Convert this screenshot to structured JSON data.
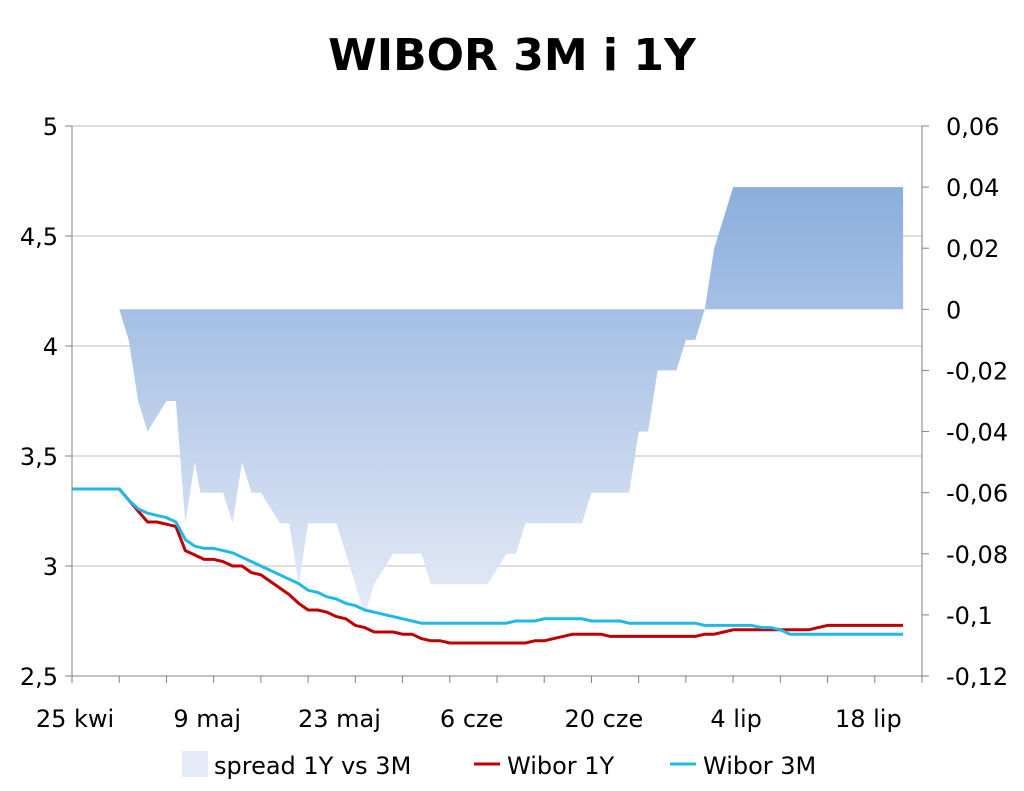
{
  "chart_data": {
    "type": "line",
    "title": "WIBOR 3M i 1Y",
    "x_ticks": [
      "25 kwi",
      "9 maj",
      "23 maj",
      "6 cze",
      "20 cze",
      "4 lip",
      "18 lip"
    ],
    "x_domain": [
      0,
      90
    ],
    "y_left": {
      "ticks": [
        "2,5",
        "3",
        "3,5",
        "4",
        "4,5",
        "5"
      ],
      "range": [
        2.5,
        5
      ]
    },
    "y_right": {
      "ticks": [
        "-0,12",
        "-0,1",
        "-0,08",
        "-0,06",
        "-0,04",
        "-0,02",
        "0",
        "0,02",
        "0,04",
        "0,06"
      ],
      "range": [
        -0.12,
        0.06
      ]
    },
    "grid": true,
    "legend_position": "bottom",
    "colors": {
      "spread_top": "#8aaedd",
      "spread_bottom": "#e4eaf6",
      "wibor_1y": "#c00000",
      "wibor_3m": "#1fb9e8"
    },
    "series": [
      {
        "name": "spread 1Y vs 3M",
        "axis": "right",
        "type": "area",
        "x": [
          5,
          6,
          7,
          8,
          9,
          10,
          11,
          12,
          13,
          13.6,
          14,
          14.5,
          15,
          16,
          17,
          18,
          19,
          19.6,
          20,
          21,
          22,
          23,
          24,
          25,
          26,
          27,
          28,
          29,
          30,
          31,
          32,
          33,
          34,
          35,
          36,
          37,
          38,
          39,
          40,
          41,
          42,
          43,
          44,
          45,
          46,
          47,
          48,
          49,
          50,
          51,
          52,
          53,
          54,
          55,
          56,
          57,
          58,
          59,
          60,
          61,
          62,
          63,
          64,
          65,
          66,
          67,
          68,
          69,
          70,
          71,
          72,
          73,
          74,
          75,
          76,
          77,
          78,
          79,
          80,
          81,
          82,
          83,
          84,
          85,
          86,
          87,
          88
        ],
        "values": [
          0,
          -0.01,
          -0.03,
          -0.04,
          -0.035,
          -0.03,
          -0.03,
          -0.07,
          -0.05,
          -0.06,
          -0.06,
          -0.06,
          -0.06,
          -0.06,
          -0.07,
          -0.05,
          -0.06,
          -0.06,
          -0.06,
          -0.065,
          -0.07,
          -0.07,
          -0.09,
          -0.07,
          -0.07,
          -0.07,
          -0.07,
          -0.08,
          -0.09,
          -0.1,
          -0.09,
          -0.085,
          -0.08,
          -0.08,
          -0.08,
          -0.08,
          -0.09,
          -0.09,
          -0.09,
          -0.09,
          -0.09,
          -0.09,
          -0.09,
          -0.085,
          -0.08,
          -0.08,
          -0.07,
          -0.07,
          -0.07,
          -0.07,
          -0.07,
          -0.07,
          -0.07,
          -0.06,
          -0.06,
          -0.06,
          -0.06,
          -0.06,
          -0.04,
          -0.04,
          -0.02,
          -0.02,
          -0.02,
          -0.01,
          -0.01,
          0,
          0.02,
          0.03,
          0.04,
          0.04,
          0.04,
          0.04,
          0.04,
          0.04,
          0.04,
          0.04,
          0.04,
          0.04,
          0.04,
          0.04,
          0.04,
          0.04,
          0.04,
          0.04,
          0.04,
          0.04,
          0.04
        ]
      },
      {
        "name": "Wibor 1Y",
        "axis": "left",
        "type": "line",
        "x": [
          0,
          1,
          2,
          3,
          4,
          5,
          6,
          7,
          8,
          9,
          10,
          11,
          12,
          13,
          14,
          15,
          16,
          17,
          18,
          19,
          20,
          21,
          22,
          23,
          24,
          25,
          26,
          27,
          28,
          29,
          30,
          31,
          32,
          33,
          34,
          35,
          36,
          37,
          38,
          39,
          40,
          41,
          42,
          43,
          44,
          45,
          46,
          47,
          48,
          49,
          50,
          51,
          52,
          53,
          54,
          55,
          56,
          57,
          58,
          59,
          60,
          61,
          62,
          63,
          64,
          65,
          66,
          67,
          68,
          69,
          70,
          71,
          72,
          73,
          74,
          75,
          76,
          77,
          78,
          79,
          80,
          81,
          82,
          83,
          84,
          85,
          86,
          87,
          88
        ],
        "values": [
          3.35,
          3.35,
          3.35,
          3.35,
          3.35,
          3.35,
          3.3,
          3.25,
          3.2,
          3.2,
          3.19,
          3.18,
          3.07,
          3.05,
          3.03,
          3.03,
          3.02,
          3.0,
          3.0,
          2.97,
          2.96,
          2.93,
          2.9,
          2.87,
          2.83,
          2.8,
          2.8,
          2.79,
          2.77,
          2.76,
          2.73,
          2.72,
          2.7,
          2.7,
          2.7,
          2.69,
          2.69,
          2.67,
          2.66,
          2.66,
          2.65,
          2.65,
          2.65,
          2.65,
          2.65,
          2.65,
          2.65,
          2.65,
          2.65,
          2.66,
          2.66,
          2.67,
          2.68,
          2.69,
          2.69,
          2.69,
          2.69,
          2.68,
          2.68,
          2.68,
          2.68,
          2.68,
          2.68,
          2.68,
          2.68,
          2.68,
          2.68,
          2.69,
          2.69,
          2.7,
          2.71,
          2.71,
          2.71,
          2.71,
          2.71,
          2.71,
          2.71,
          2.71,
          2.71,
          2.72,
          2.73,
          2.73,
          2.73,
          2.73,
          2.73,
          2.73,
          2.73,
          2.73,
          2.73
        ]
      },
      {
        "name": "Wibor 3M",
        "axis": "left",
        "type": "line",
        "x": [
          0,
          1,
          2,
          3,
          4,
          5,
          6,
          7,
          8,
          9,
          10,
          11,
          12,
          13,
          14,
          15,
          16,
          17,
          18,
          19,
          20,
          21,
          22,
          23,
          24,
          25,
          26,
          27,
          28,
          29,
          30,
          31,
          32,
          33,
          34,
          35,
          36,
          37,
          38,
          39,
          40,
          41,
          42,
          43,
          44,
          45,
          46,
          47,
          48,
          49,
          50,
          51,
          52,
          53,
          54,
          55,
          56,
          57,
          58,
          59,
          60,
          61,
          62,
          63,
          64,
          65,
          66,
          67,
          68,
          69,
          70,
          71,
          72,
          73,
          74,
          75,
          76,
          77,
          78,
          79,
          80,
          81,
          82,
          83,
          84,
          85,
          86,
          87,
          88
        ],
        "values": [
          3.35,
          3.35,
          3.35,
          3.35,
          3.35,
          3.35,
          3.3,
          3.26,
          3.24,
          3.23,
          3.22,
          3.2,
          3.12,
          3.09,
          3.08,
          3.08,
          3.07,
          3.06,
          3.04,
          3.02,
          3.0,
          2.98,
          2.96,
          2.94,
          2.92,
          2.89,
          2.88,
          2.86,
          2.85,
          2.83,
          2.82,
          2.8,
          2.79,
          2.78,
          2.77,
          2.76,
          2.75,
          2.74,
          2.74,
          2.74,
          2.74,
          2.74,
          2.74,
          2.74,
          2.74,
          2.74,
          2.74,
          2.75,
          2.75,
          2.75,
          2.76,
          2.76,
          2.76,
          2.76,
          2.76,
          2.75,
          2.75,
          2.75,
          2.75,
          2.74,
          2.74,
          2.74,
          2.74,
          2.74,
          2.74,
          2.74,
          2.74,
          2.73,
          2.73,
          2.73,
          2.73,
          2.73,
          2.73,
          2.72,
          2.72,
          2.71,
          2.69,
          2.69,
          2.69,
          2.69,
          2.69,
          2.69,
          2.69,
          2.69,
          2.69,
          2.69,
          2.69,
          2.69,
          2.69
        ]
      }
    ]
  }
}
